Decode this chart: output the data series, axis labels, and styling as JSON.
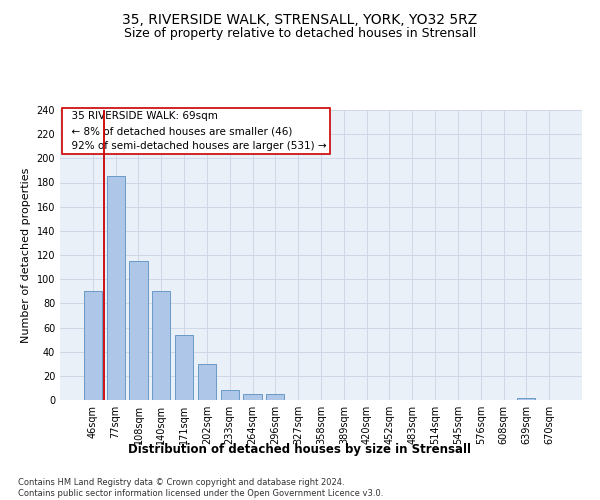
{
  "title": "35, RIVERSIDE WALK, STRENSALL, YORK, YO32 5RZ",
  "subtitle": "Size of property relative to detached houses in Strensall",
  "xlabel": "Distribution of detached houses by size in Strensall",
  "ylabel": "Number of detached properties",
  "categories": [
    "46sqm",
    "77sqm",
    "108sqm",
    "140sqm",
    "171sqm",
    "202sqm",
    "233sqm",
    "264sqm",
    "296sqm",
    "327sqm",
    "358sqm",
    "389sqm",
    "420sqm",
    "452sqm",
    "483sqm",
    "514sqm",
    "545sqm",
    "576sqm",
    "608sqm",
    "639sqm",
    "670sqm"
  ],
  "values": [
    90,
    185,
    115,
    90,
    54,
    30,
    8,
    5,
    5,
    0,
    0,
    0,
    0,
    0,
    0,
    0,
    0,
    0,
    0,
    2,
    0
  ],
  "bar_color": "#aec6e8",
  "bar_edge_color": "#5a8fc0",
  "grid_color": "#d0d8e8",
  "bg_color": "#eaf0f8",
  "vline_color": "#cc0000",
  "annotation_text": "  35 RIVERSIDE WALK: 69sqm\n  ← 8% of detached houses are smaller (46)\n  92% of semi-detached houses are larger (531) →",
  "annotation_box_color": "#ffffff",
  "annotation_box_edge": "#cc0000",
  "ylim": [
    0,
    240
  ],
  "yticks": [
    0,
    20,
    40,
    60,
    80,
    100,
    120,
    140,
    160,
    180,
    200,
    220,
    240
  ],
  "footnote": "Contains HM Land Registry data © Crown copyright and database right 2024.\nContains public sector information licensed under the Open Government Licence v3.0.",
  "title_fontsize": 10,
  "subtitle_fontsize": 9,
  "xlabel_fontsize": 8.5,
  "ylabel_fontsize": 8,
  "tick_fontsize": 7,
  "annotation_fontsize": 7.5,
  "footnote_fontsize": 6
}
